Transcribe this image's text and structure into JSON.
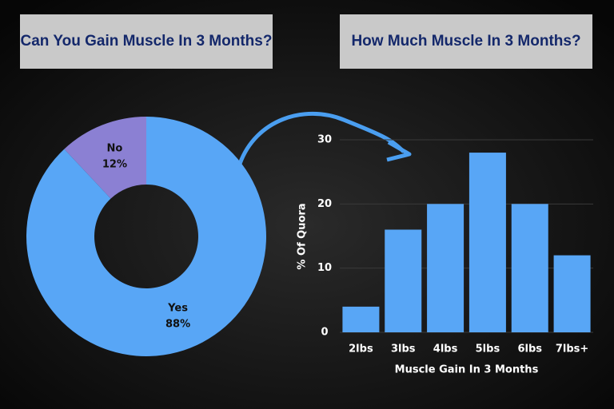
{
  "chart_data": [
    {
      "type": "pie",
      "title": "Can You Gain Muscle In 3 Months?",
      "categories": [
        "No",
        "Yes"
      ],
      "values": [
        12,
        88
      ],
      "value_labels": [
        "12%",
        "88%"
      ],
      "colors": [
        "#8b80d3",
        "#58a6f6"
      ],
      "donut": true
    },
    {
      "type": "bar",
      "title": "How Much Muscle In 3 Months?",
      "categories": [
        "2lbs",
        "3lbs",
        "4lbs",
        "5lbs",
        "6lbs",
        "7lbs+"
      ],
      "values": [
        4,
        16,
        20,
        28,
        20,
        12
      ],
      "color": "#58a6f6",
      "xlabel": "Muscle Gain In 3 Months",
      "ylabel": "% Of Quora",
      "ylim": [
        0,
        30
      ],
      "yticks": [
        0,
        10,
        20,
        30
      ],
      "grid": true
    }
  ]
}
